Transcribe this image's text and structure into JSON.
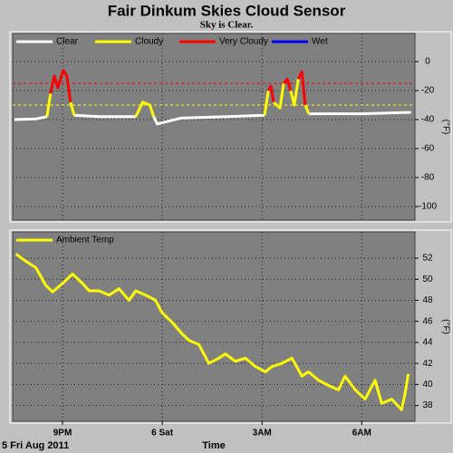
{
  "title": "Fair Dinkum Skies Cloud Sensor",
  "subtitle": "Sky is Clear.",
  "date_label": "5 Fri Aug 2011",
  "x_label": "Time",
  "chart_data": [
    {
      "type": "line",
      "y_label": "(°F)",
      "x": [
        19.55,
        20.21,
        20.53,
        20.64,
        20.75,
        20.86,
        21.02,
        21.13,
        21.24,
        21.35,
        22.11,
        23.2,
        23.41,
        23.63,
        23.74,
        23.85,
        24.55,
        25.91,
        27.08,
        27.19,
        27.27,
        27.35,
        27.54,
        27.65,
        27.76,
        27.86,
        27.97,
        28.09,
        28.2,
        28.3,
        28.41,
        29.99,
        31.48
      ],
      "series": [
        {
          "name": "Clear",
          "color": "#ffffff",
          "values": [
            -40,
            -39.5,
            -38,
            null,
            null,
            null,
            null,
            null,
            null,
            -37,
            -38,
            -38,
            null,
            null,
            -38,
            -43,
            -39,
            -38,
            -37,
            null,
            null,
            null,
            null,
            null,
            null,
            null,
            null,
            null,
            null,
            null,
            -36,
            -36,
            -35
          ]
        },
        {
          "name": "Cloudy",
          "color": "#ffff00",
          "values": [
            null,
            null,
            -38,
            -22,
            null,
            null,
            null,
            null,
            -28,
            -37,
            null,
            -38,
            -28,
            -30,
            -38,
            null,
            null,
            null,
            -37,
            -20,
            null,
            -28,
            -32,
            -15,
            null,
            -20,
            -30,
            -12,
            null,
            -30,
            -36,
            null,
            null
          ]
        },
        {
          "name": "Very Cloudy",
          "color": "#ff0000",
          "values": [
            null,
            null,
            null,
            -22,
            -10,
            -18,
            -6,
            -10,
            -28,
            null,
            null,
            null,
            null,
            null,
            null,
            null,
            null,
            null,
            null,
            -20,
            -17,
            -28,
            null,
            -15,
            -12,
            -20,
            null,
            -12,
            -7,
            -30,
            null,
            null,
            null
          ]
        },
        {
          "name": "Wet",
          "color": "#0000ff",
          "values": [
            null,
            null,
            null,
            null,
            null,
            null,
            null,
            null,
            null,
            null,
            null,
            null,
            null,
            null,
            null,
            null,
            null,
            null,
            null,
            null,
            null,
            null,
            null,
            null,
            null,
            null,
            null,
            null,
            null,
            null,
            null,
            null,
            null
          ]
        }
      ],
      "thresholds": [
        {
          "value": -15,
          "color": "#ff0000"
        },
        {
          "value": -30,
          "color": "#ffff00"
        }
      ],
      "xlim": [
        19.5,
        31.6
      ],
      "xticks": [
        21,
        24,
        27,
        30
      ],
      "ylim": [
        -109.4,
        19.4
      ],
      "yticks": [
        0,
        -20,
        -40,
        -60,
        -80,
        -100
      ],
      "grid": true
    },
    {
      "type": "line",
      "y_label": "(°F)",
      "x": [
        19.6,
        19.9,
        20.2,
        20.5,
        20.7,
        21.0,
        21.3,
        21.6,
        21.8,
        22.1,
        22.4,
        22.7,
        23.0,
        23.2,
        23.5,
        23.8,
        24.0,
        24.3,
        24.6,
        24.8,
        25.1,
        25.4,
        25.7,
        25.9,
        26.2,
        26.5,
        26.8,
        27.1,
        27.3,
        27.6,
        27.9,
        28.2,
        28.4,
        28.7,
        29.0,
        29.3,
        29.5,
        29.8,
        30.1,
        30.4,
        30.6,
        30.9,
        31.2,
        31.3,
        31.4
      ],
      "series": [
        {
          "name": "Ambient Temp",
          "color": "#ffff00",
          "values": [
            52.4,
            51.7,
            51.1,
            49.4,
            48.8,
            49.6,
            50.5,
            49.6,
            48.9,
            48.9,
            48.5,
            49.1,
            48.0,
            48.9,
            48.5,
            48.0,
            46.8,
            45.9,
            44.8,
            44.2,
            43.8,
            42.0,
            42.5,
            42.9,
            42.2,
            42.5,
            41.7,
            41.2,
            41.7,
            42.0,
            42.5,
            40.8,
            41.2,
            40.4,
            39.9,
            39.5,
            40.8,
            39.5,
            38.6,
            40.4,
            38.2,
            38.6,
            37.6,
            39.1,
            41.0
          ]
        }
      ],
      "xlim": [
        19.5,
        31.6
      ],
      "xticks": [
        {
          "value": 21,
          "label": "9PM"
        },
        {
          "value": 24,
          "label": "6 Sat"
        },
        {
          "value": 27,
          "label": "3AM"
        },
        {
          "value": 30,
          "label": "6AM"
        }
      ],
      "ylim": [
        36.5,
        54.5
      ],
      "yticks": [
        38,
        40,
        42,
        44,
        46,
        48,
        50,
        52
      ],
      "grid": true
    }
  ]
}
